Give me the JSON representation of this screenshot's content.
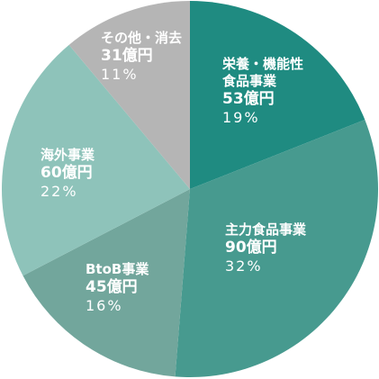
{
  "chart_data": {
    "type": "pie",
    "categories": [
      "栄養・機能性\n食品事業",
      "主力食品事業",
      "BtoB事業",
      "海外事業",
      "その他・消去"
    ],
    "values": [
      53,
      90,
      45,
      60,
      31
    ],
    "value_labels": [
      "53億円",
      "90億円",
      "45億円",
      "60億円",
      "31億円"
    ],
    "percent_labels": [
      "19%",
      "32%",
      "16%",
      "22%",
      "11%"
    ],
    "colors": [
      "#1f8b81",
      "#479a8f",
      "#72a69c",
      "#8ec3ba",
      "#b5b5b5"
    ]
  }
}
